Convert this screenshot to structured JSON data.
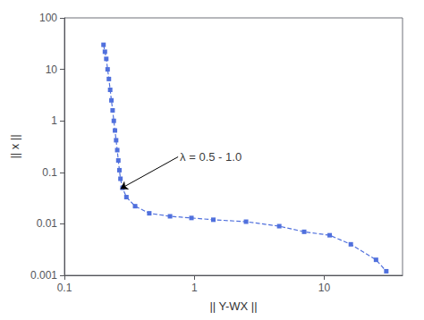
{
  "chart_data": {
    "type": "line",
    "xlabel": "|| Y-WX ||",
    "ylabel": "|| x ||",
    "x": [
      0.2,
      0.205,
      0.21,
      0.215,
      0.22,
      0.225,
      0.23,
      0.235,
      0.24,
      0.245,
      0.25,
      0.255,
      0.26,
      0.265,
      0.27,
      0.28,
      0.3,
      0.35,
      0.45,
      0.65,
      0.95,
      1.4,
      2.5,
      4.5,
      7.0,
      11.0,
      16.0,
      25.0,
      30.0
    ],
    "values": [
      30.0,
      22.0,
      16.0,
      10.0,
      6.5,
      4.0,
      2.5,
      1.6,
      1.0,
      0.65,
      0.42,
      0.27,
      0.17,
      0.11,
      0.075,
      0.05,
      0.033,
      0.022,
      0.016,
      0.014,
      0.013,
      0.012,
      0.011,
      0.009,
      0.007,
      0.006,
      0.004,
      0.002,
      0.0012
    ],
    "log": true,
    "xlim": [
      0.1,
      40
    ],
    "ylim": [
      0.001,
      100
    ],
    "xticks": [
      0.1,
      1,
      10
    ],
    "yticks": [
      0.001,
      0.01,
      0.1,
      1,
      10,
      100
    ],
    "marker": "square",
    "line_style": "dashed",
    "grid": false,
    "annotations": [
      {
        "text": "λ = 0.5 - 1.0",
        "xy": [
          0.27,
          0.048
        ],
        "xytext": [
          0.75,
          0.2
        ]
      }
    ]
  }
}
